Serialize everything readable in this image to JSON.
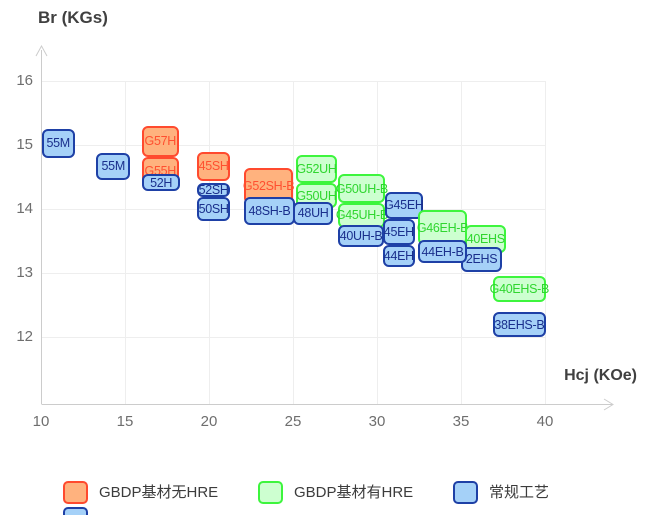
{
  "chart_data": {
    "type": "scatter",
    "title": "",
    "x_axis": {
      "name": "Hcj (KOe)",
      "unit": "KOe",
      "min": 10,
      "max": 40,
      "ticks": [
        10,
        15,
        20,
        25,
        30,
        35,
        40
      ]
    },
    "y_axis": {
      "name": "Br (KGs)",
      "unit": "KGs",
      "min": 12,
      "max": 16,
      "ticks": [
        12,
        13,
        14,
        15,
        16
      ]
    },
    "grid": "on",
    "legend_position": "bottom",
    "categories": {
      "gbdp_no_hre": {
        "label": "GBDP基材无HRE",
        "fill": "#FFB27E",
        "border": "#FF4A2E",
        "text": "#FF5030"
      },
      "gbdp_with_hre": {
        "label": "GBDP基材有HRE",
        "fill": "#CDFFD0",
        "border": "#3DF53D",
        "text": "#2FD62F"
      },
      "conventional": {
        "label": "常规工艺",
        "fill": "#A5D1F8",
        "border": "#1E40A6",
        "text": "#1A2F8C"
      }
    },
    "boxes": [
      {
        "label": "55M",
        "category": "conventional",
        "hcj_range": [
          10.05,
          12.0
        ],
        "br_range": [
          14.8,
          15.25
        ]
      },
      {
        "label": "55M",
        "category": "conventional",
        "hcj_range": [
          13.3,
          15.3
        ],
        "br_range": [
          14.45,
          14.88
        ]
      },
      {
        "label": "G57H",
        "category": "gbdp_no_hre",
        "hcj_range": [
          16.0,
          18.2
        ],
        "br_range": [
          14.82,
          15.3
        ]
      },
      {
        "label": "G55H",
        "category": "gbdp_no_hre",
        "hcj_range": [
          16.0,
          18.2
        ],
        "br_range": [
          14.38,
          14.82
        ]
      },
      {
        "label": "52H",
        "category": "conventional",
        "hcj_range": [
          16.0,
          18.3
        ],
        "br_range": [
          14.28,
          14.54
        ]
      },
      {
        "label": "45SH",
        "category": "gbdp_no_hre",
        "hcj_range": [
          19.3,
          21.25
        ],
        "br_range": [
          14.44,
          14.89
        ]
      },
      {
        "label": "52SH",
        "category": "conventional",
        "hcj_range": [
          19.3,
          21.25
        ],
        "br_range": [
          14.19,
          14.41
        ]
      },
      {
        "label": "50SH",
        "category": "conventional",
        "hcj_range": [
          19.3,
          21.25
        ],
        "br_range": [
          13.81,
          14.19
        ]
      },
      {
        "label": "G52SH-B",
        "category": "gbdp_no_hre",
        "hcj_range": [
          22.1,
          25.0
        ],
        "br_range": [
          14.08,
          14.64
        ]
      },
      {
        "label": "48SH-B",
        "category": "conventional",
        "hcj_range": [
          22.1,
          25.1
        ],
        "br_range": [
          13.75,
          14.18
        ]
      },
      {
        "label": "G52UH",
        "category": "gbdp_with_hre",
        "hcj_range": [
          25.2,
          27.6
        ],
        "br_range": [
          14.4,
          14.84
        ]
      },
      {
        "label": "G50UH",
        "category": "gbdp_with_hre",
        "hcj_range": [
          25.2,
          27.6
        ],
        "br_range": [
          14.02,
          14.4
        ]
      },
      {
        "label": "48UH",
        "category": "conventional",
        "hcj_range": [
          25.0,
          27.4
        ],
        "br_range": [
          13.75,
          14.11
        ]
      },
      {
        "label": "G50UH-B",
        "category": "gbdp_with_hre",
        "hcj_range": [
          27.7,
          30.5
        ],
        "br_range": [
          14.1,
          14.54
        ]
      },
      {
        "label": "G45UH-B",
        "category": "gbdp_with_hre",
        "hcj_range": [
          27.7,
          30.5
        ],
        "br_range": [
          13.7,
          14.1
        ]
      },
      {
        "label": "G45EH",
        "category": "conventional",
        "hcj_range": [
          30.45,
          32.75
        ],
        "br_range": [
          13.85,
          14.27
        ]
      },
      {
        "label": "40UH-B",
        "category": "conventional",
        "hcj_range": [
          27.7,
          30.4
        ],
        "br_range": [
          13.41,
          13.75
        ]
      },
      {
        "label": "45EH",
        "category": "conventional",
        "hcj_range": [
          30.35,
          32.25
        ],
        "br_range": [
          13.44,
          13.85
        ]
      },
      {
        "label": "44EH",
        "category": "conventional",
        "hcj_range": [
          30.35,
          32.25
        ],
        "br_range": [
          13.1,
          13.44
        ]
      },
      {
        "label": "G46EH-B",
        "category": "gbdp_with_hre",
        "hcj_range": [
          32.45,
          35.35
        ],
        "br_range": [
          13.44,
          13.98
        ]
      },
      {
        "label": "40EHS",
        "category": "gbdp_with_hre",
        "hcj_range": [
          35.25,
          37.7
        ],
        "br_range": [
          13.31,
          13.75
        ]
      },
      {
        "label": "2EHS",
        "category": "conventional",
        "hcj_range": [
          35.0,
          37.45
        ],
        "br_range": [
          13.02,
          13.41
        ]
      },
      {
        "label": "44EH-B",
        "category": "conventional",
        "hcj_range": [
          32.45,
          35.35
        ],
        "br_range": [
          13.15,
          13.52
        ]
      },
      {
        "label": "G40EHS-B",
        "category": "gbdp_with_hre",
        "hcj_range": [
          36.9,
          40.05
        ],
        "br_range": [
          12.54,
          12.95
        ]
      },
      {
        "label": "38EHS-B",
        "category": "conventional",
        "hcj_range": [
          36.9,
          40.05
        ],
        "br_range": [
          12.0,
          12.39
        ]
      }
    ]
  },
  "legend": {
    "items": [
      {
        "key": "gbdp_no_hre",
        "label": "GBDP基材无HRE"
      },
      {
        "key": "gbdp_with_hre",
        "label": "GBDP基材有HRE"
      },
      {
        "key": "conventional",
        "label": "常规工艺"
      }
    ],
    "extra_row_swatch_visible": true
  }
}
